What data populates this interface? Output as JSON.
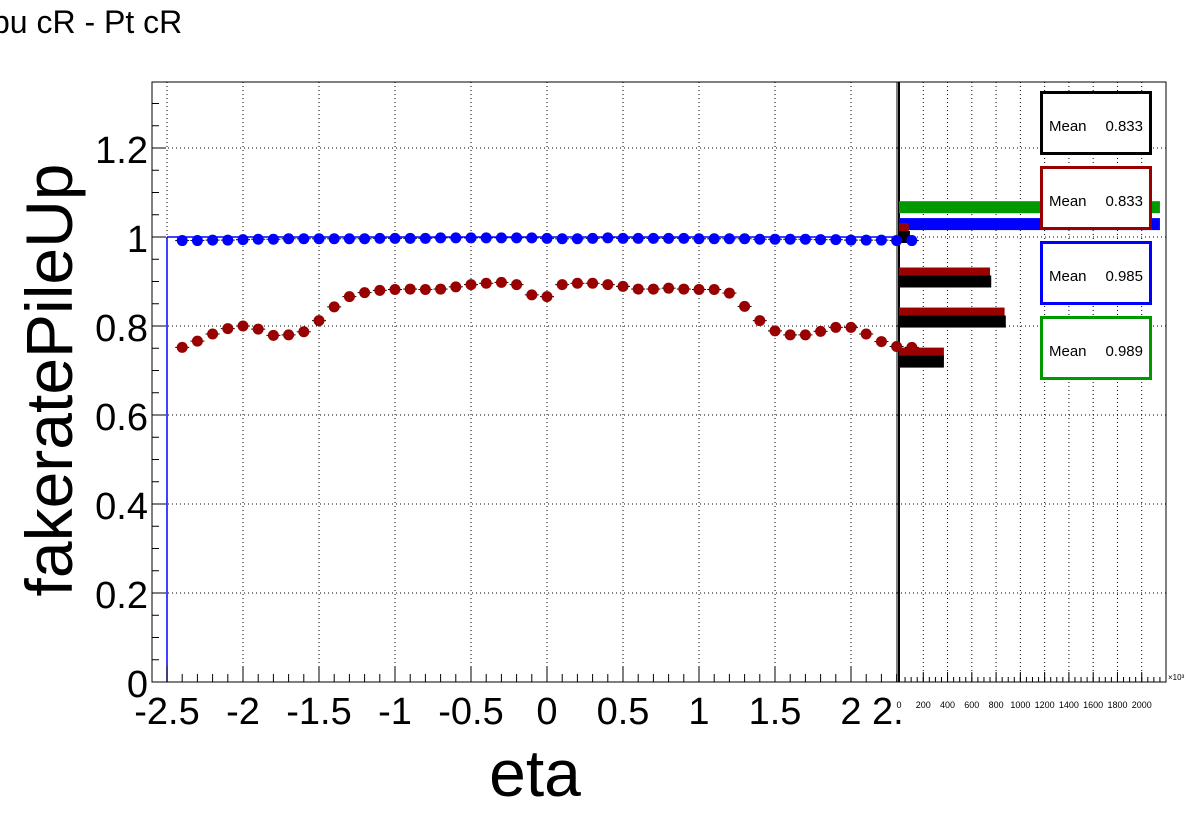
{
  "title": "pu cR - Pt cR",
  "colors": {
    "red_series": "#990000",
    "blue_series": "#0000ff",
    "green": "#009900",
    "black": "#000000"
  },
  "stat_boxes": [
    {
      "label": "Mean",
      "value": "0.833",
      "color": "#000000"
    },
    {
      "label": "Mean",
      "value": "0.833",
      "color": "#990000"
    },
    {
      "label": "Mean",
      "value": "0.985",
      "color": "#0000ff"
    },
    {
      "label": "Mean",
      "value": "0.989",
      "color": "#009900"
    }
  ],
  "chart_data": [
    {
      "type": "scatter",
      "title": "pu cR - Pt cR",
      "xlabel": "eta",
      "ylabel": "fakeratePileUp",
      "xlim": [
        -2.5,
        2.4
      ],
      "ylim": [
        0,
        1.35
      ],
      "grid": true,
      "x_ticks": [
        "-2.5",
        "-2",
        "-1.5",
        "-1",
        "-0.5",
        "0",
        "0.5",
        "1",
        "1.5",
        "2",
        "2."
      ],
      "y_ticks": [
        "0",
        "0.2",
        "0.4",
        "0.6",
        "0.8",
        "1",
        "1.2"
      ],
      "x": [
        -2.4,
        -2.3,
        -2.2,
        -2.1,
        -2.0,
        -1.9,
        -1.8,
        -1.7,
        -1.6,
        -1.5,
        -1.4,
        -1.3,
        -1.2,
        -1.1,
        -1.0,
        -0.9,
        -0.8,
        -0.7,
        -0.6,
        -0.5,
        -0.4,
        -0.3,
        -0.2,
        -0.1,
        0.0,
        0.1,
        0.2,
        0.3,
        0.4,
        0.5,
        0.6,
        0.7,
        0.8,
        0.9,
        1.0,
        1.1,
        1.2,
        1.3,
        1.4,
        1.5,
        1.6,
        1.7,
        1.8,
        1.9,
        2.0,
        2.1,
        2.2,
        2.3,
        2.4
      ],
      "series": [
        {
          "values": [
            0.752,
            0.766,
            0.782,
            0.794,
            0.8,
            0.793,
            0.779,
            0.78,
            0.787,
            0.812,
            0.843,
            0.866,
            0.875,
            0.88,
            0.882,
            0.883,
            0.882,
            0.883,
            0.888,
            0.893,
            0.896,
            0.898,
            0.893,
            0.87,
            0.866,
            0.893,
            0.896,
            0.896,
            0.893,
            0.889,
            0.883,
            0.883,
            0.885,
            0.883,
            0.882,
            0.882,
            0.874,
            0.844,
            0.812,
            0.789,
            0.78,
            0.78,
            0.788,
            0.797,
            0.797,
            0.782,
            0.765,
            0.754,
            0.752
          ],
          "color": "#990000"
        },
        {
          "values": [
            0.992,
            0.992,
            0.993,
            0.993,
            0.994,
            0.995,
            0.995,
            0.996,
            0.996,
            0.996,
            0.996,
            0.996,
            0.996,
            0.997,
            0.997,
            0.997,
            0.997,
            0.998,
            0.998,
            0.998,
            0.998,
            0.998,
            0.998,
            0.998,
            0.997,
            0.996,
            0.996,
            0.997,
            0.998,
            0.997,
            0.997,
            0.997,
            0.997,
            0.997,
            0.996,
            0.996,
            0.996,
            0.996,
            0.995,
            0.995,
            0.995,
            0.995,
            0.994,
            0.994,
            0.993,
            0.993,
            0.993,
            0.992,
            0.992
          ],
          "color": "#0000ff"
        }
      ]
    },
    {
      "type": "bar",
      "orientation": "horizontal",
      "xlim": [
        0,
        2200
      ],
      "x_ticks": [
        "0",
        "200",
        "400",
        "600",
        "800",
        "1000",
        "1200",
        "1400",
        "1600",
        "1800",
        "2000"
      ],
      "x_exponent": "×10³",
      "series": [
        {
          "color": "#000000",
          "bars": [
            {
              "y": 0.72,
              "value": 370
            },
            {
              "y": 0.81,
              "value": 880
            },
            {
              "y": 0.9,
              "value": 760
            },
            {
              "y": 1.0,
              "value": 90
            }
          ]
        },
        {
          "color": "#990000",
          "bars": [
            {
              "y": 0.72,
              "value": 370
            },
            {
              "y": 0.81,
              "value": 870
            },
            {
              "y": 0.9,
              "value": 750
            },
            {
              "y": 1.0,
              "value": 80
            }
          ]
        },
        {
          "color": "#0000ff",
          "bars": [
            {
              "y": 1.02,
              "value": 2150
            }
          ]
        },
        {
          "color": "#009900",
          "bars": [
            {
              "y": 1.04,
              "value": 2150
            }
          ]
        }
      ]
    }
  ]
}
